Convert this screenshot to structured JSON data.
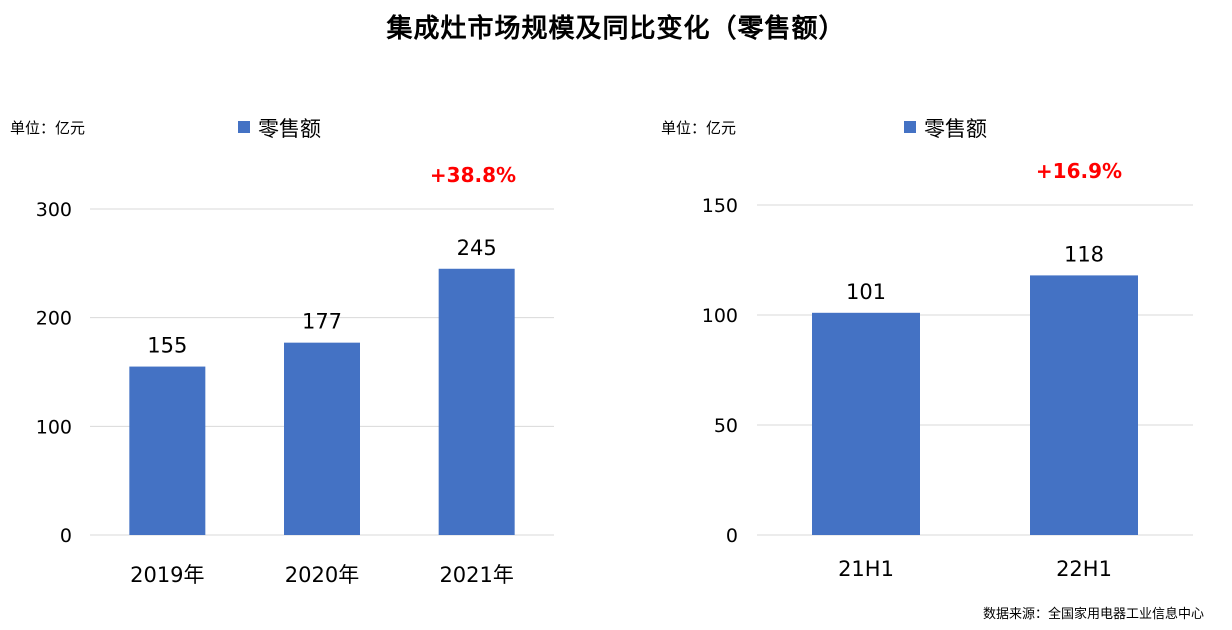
{
  "title": "集成灶市场规模及同比变化（零售额）",
  "source": "数据来源：全国家用电器工业信息中心",
  "colors": {
    "bar": "#4472C4",
    "growth": "#FF0000",
    "grid": "#D9D9D9"
  },
  "chart_data": [
    {
      "type": "bar",
      "unit_label": "单位：亿元",
      "categories": [
        "2019年",
        "2020年",
        "2021年"
      ],
      "series": [
        {
          "name": "零售额",
          "values": [
            155,
            177,
            245
          ]
        }
      ],
      "data_labels": [
        "155",
        "177",
        "245"
      ],
      "yticks": [
        "300",
        "200",
        "100",
        "0"
      ],
      "ylim": [
        0,
        300
      ],
      "growth_label": "+38.8%",
      "grid": true,
      "legend_position": "top"
    },
    {
      "type": "bar",
      "unit_label": "单位：亿元",
      "categories": [
        "21H1",
        "22H1"
      ],
      "series": [
        {
          "name": "零售额",
          "values": [
            101,
            118
          ]
        }
      ],
      "data_labels": [
        "101",
        "118"
      ],
      "yticks": [
        "150",
        "100",
        "50",
        "0"
      ],
      "ylim": [
        0,
        150
      ],
      "growth_label": "+16.9%",
      "grid": true,
      "legend_position": "top"
    }
  ]
}
